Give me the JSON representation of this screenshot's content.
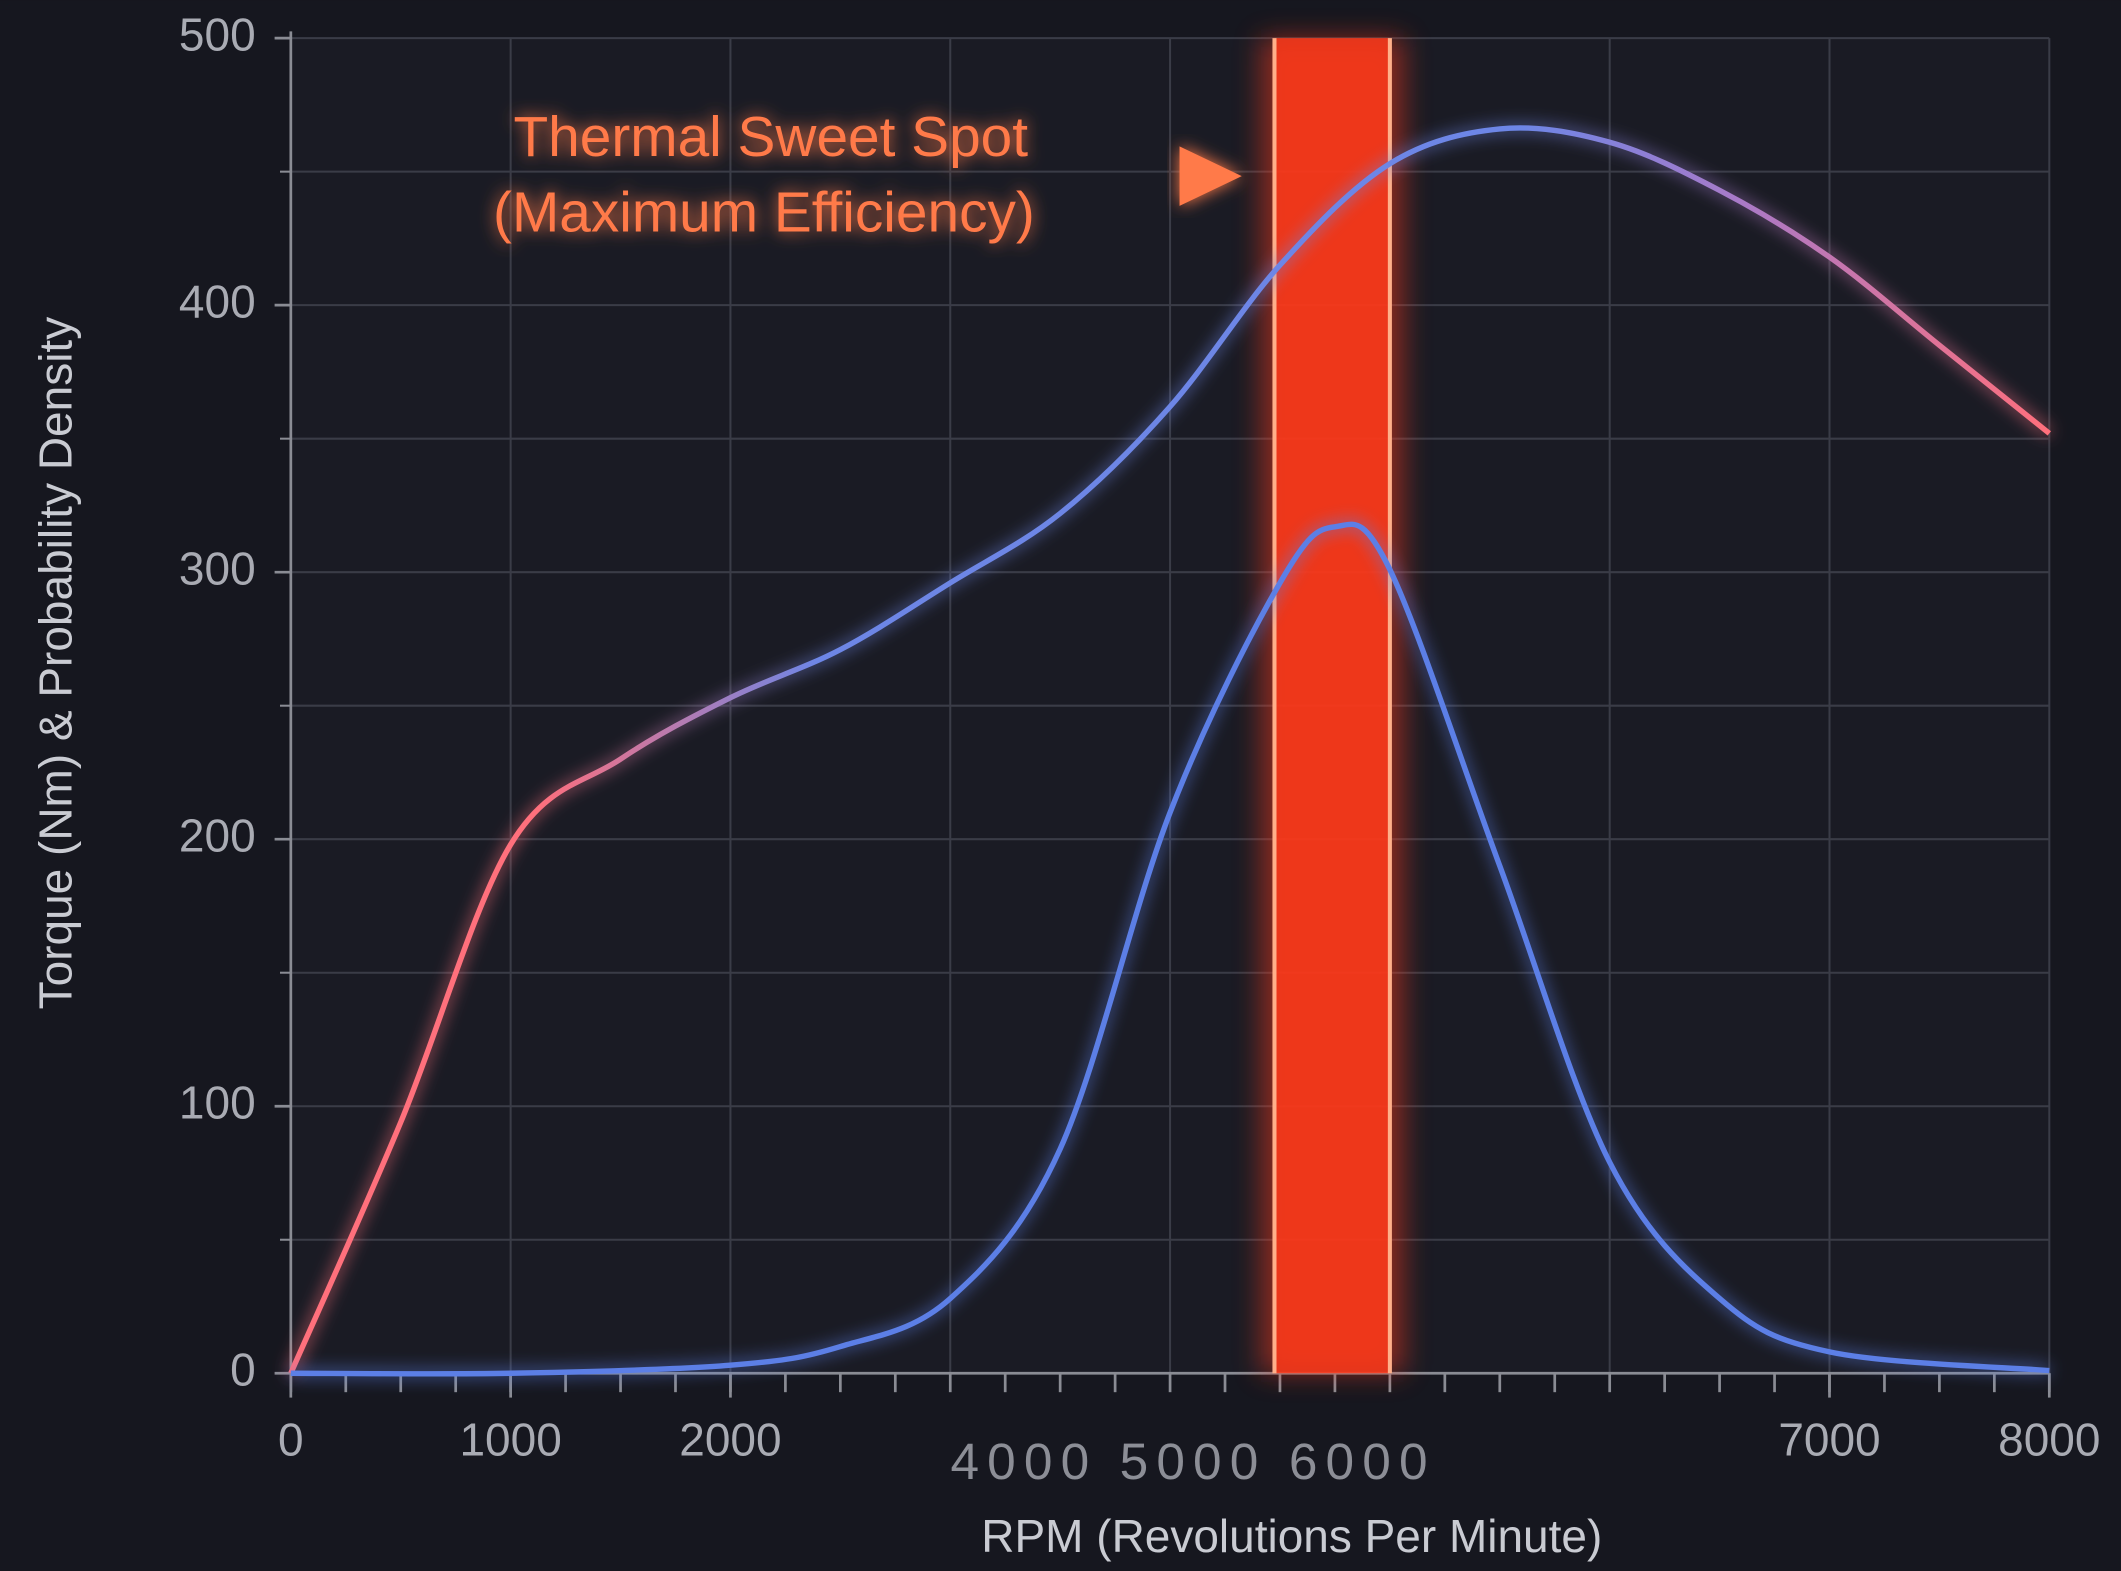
{
  "chart_data": {
    "type": "line",
    "xlabel": "RPM (Revolutions Per Minute)",
    "ylabel": "Torque (Nm) & Probability Density",
    "xlim": [
      0,
      8000
    ],
    "ylim": [
      0,
      500
    ],
    "xticks": [
      0,
      1000,
      2000,
      7000,
      8000
    ],
    "xgrid": [
      0,
      1000,
      2000,
      3000,
      4000,
      5000,
      6000,
      7000,
      8000
    ],
    "x_minor_step": 250,
    "yticks": [
      0,
      100,
      200,
      300,
      400,
      500
    ],
    "ygrid": [
      0,
      50,
      100,
      150,
      200,
      250,
      300,
      350,
      400,
      450,
      500
    ],
    "grid": true,
    "x_label_group": "4000 5000 6000",
    "series": [
      {
        "color": "#ff6f7c",
        "color_mid": "#6d86e6",
        "x": [
          0,
          500,
          1000,
          1500,
          2000,
          2500,
          3000,
          3500,
          4000,
          4500,
          5000,
          5500,
          6000,
          6500,
          7000,
          7500,
          8000
        ],
        "values": [
          0,
          94,
          198,
          230,
          253,
          271,
          296,
          322,
          362,
          415,
          453,
          466,
          461,
          443,
          418,
          385,
          352
        ]
      },
      {
        "color": "#5b7fe6",
        "x": [
          0,
          1000,
          2000,
          2500,
          3000,
          3500,
          4000,
          4500,
          4750,
          5000,
          5500,
          6000,
          6500,
          7000,
          8000
        ],
        "values": [
          0,
          0,
          3,
          10,
          28,
          84,
          210,
          296,
          317,
          301,
          190,
          79,
          28,
          8,
          1
        ]
      }
    ],
    "band": {
      "range": [
        4475,
        5000
      ],
      "center": 4725,
      "color": "#ff3a1a"
    },
    "annotation": {
      "text": [
        "Thermal Sweet Spot",
        "(Maximum Efficiency)"
      ],
      "color": "#ff7a4a"
    }
  }
}
